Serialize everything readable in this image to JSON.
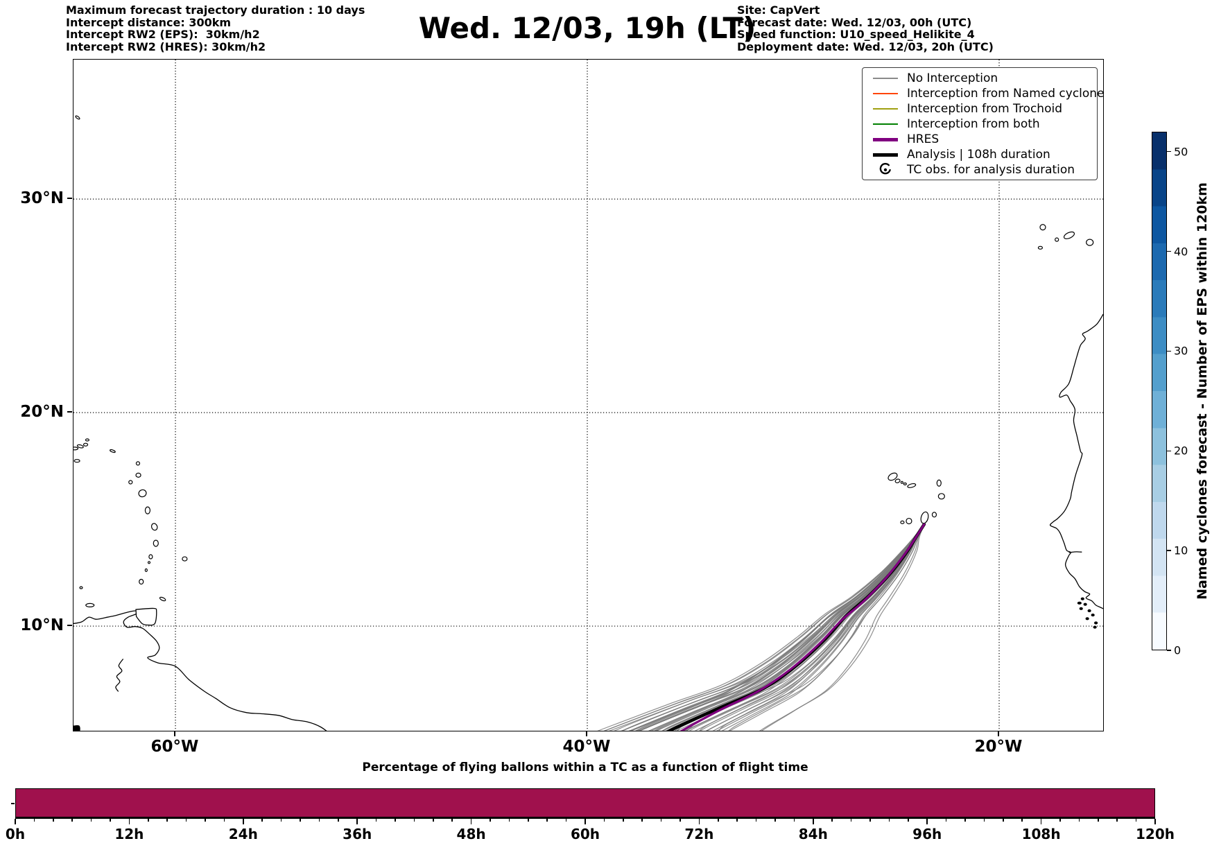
{
  "header": {
    "info_left": [
      "Maximum forecast trajectory duration : 10 days",
      "Intercept distance: 300km",
      "Intercept RW2 (EPS):  30km/h2",
      "Intercept RW2 (HRES): 30km/h2"
    ],
    "title": "Wed. 12/03, 19h (LT)",
    "info_right": [
      "Site: CapVert",
      "Forecast date: Wed. 12/03, 00h (UTC)",
      "Speed function: U10_speed_Helikite_4",
      "Deployment date: Wed. 12/03, 20h (UTC)"
    ]
  },
  "legend": {
    "entries": [
      {
        "label": "No Interception",
        "color": "#8a8a8a",
        "kind": "line"
      },
      {
        "label": "Interception from Named cyclone",
        "color": "#ff4500",
        "kind": "line"
      },
      {
        "label": "Interception from Trochoid",
        "color": "#a0a010",
        "kind": "line"
      },
      {
        "label": "Interception from both",
        "color": "#008000",
        "kind": "line"
      },
      {
        "label": "HRES",
        "color": "#800080",
        "kind": "thick"
      },
      {
        "label": "Analysis | 108h duration",
        "color": "#000000",
        "kind": "thick"
      },
      {
        "label": "TC obs. for analysis duration",
        "color": "#000000",
        "kind": "marker",
        "icon": "cyclone"
      }
    ]
  },
  "colorbar": {
    "label": "Named cyclones forecast - Number of EPS within 120km",
    "ticks": [
      0,
      10,
      20,
      30,
      40,
      50
    ],
    "vmin": 0,
    "vmax": 52,
    "colormap": "Blues",
    "colors": [
      "#f7fbff",
      "#e3eef9",
      "#d3e4f3",
      "#bfd8ed",
      "#a8cee4",
      "#8dc1dd",
      "#6fb0d7",
      "#549fcd",
      "#3d8dc4",
      "#2b7bba",
      "#1c69af",
      "#0d57a1",
      "#084488",
      "#08306b"
    ]
  },
  "chart_data": [
    {
      "type": "map-trajectories",
      "title": "Wed. 12/03, 19h (LT)",
      "projection": "PlateCarree",
      "extent": {
        "lon": [
          -64.95,
          -14.95
        ],
        "lat": [
          5.1,
          36.53
        ]
      },
      "grid": "dotted",
      "lon_ticks": [
        {
          "value": -60,
          "label": "60°W"
        },
        {
          "value": -40,
          "label": "40°W"
        },
        {
          "value": -20,
          "label": "20°W"
        }
      ],
      "lat_ticks": [
        {
          "value": 30,
          "label": "30°N"
        },
        {
          "value": 20,
          "label": "20°N"
        },
        {
          "value": 10,
          "label": "10°N"
        }
      ],
      "site": {
        "name": "CapVert",
        "lon": -23.64,
        "lat": 14.77
      },
      "analysis_path": [
        [
          -23.64,
          14.77
        ],
        [
          -24.05,
          14.15
        ],
        [
          -24.45,
          13.52
        ],
        [
          -25.3,
          12.45
        ],
        [
          -26.4,
          11.35
        ],
        [
          -27.42,
          10.5
        ],
        [
          -28.42,
          9.42
        ],
        [
          -29.78,
          8.2
        ],
        [
          -31.4,
          7.1
        ],
        [
          -33.5,
          6.2
        ],
        [
          -35.9,
          5.15
        ],
        [
          -36.6,
          4.7
        ]
      ],
      "analysis_style": {
        "color": "#000000",
        "width": 4.5
      },
      "hres_path": [
        [
          -23.64,
          14.77
        ],
        [
          -24.15,
          14.0
        ],
        [
          -24.6,
          13.35
        ],
        [
          -25.5,
          12.25
        ],
        [
          -26.6,
          11.15
        ],
        [
          -27.65,
          10.28
        ],
        [
          -28.7,
          9.2
        ],
        [
          -30.1,
          8.0
        ],
        [
          -31.7,
          6.95
        ],
        [
          -33.6,
          6.05
        ],
        [
          -35.4,
          5.1
        ],
        [
          -36.1,
          4.65
        ]
      ],
      "hres_style": {
        "color": "#800080",
        "width": 3.2
      },
      "eps_members": {
        "count": 50,
        "seed": 11,
        "color": "#7a7a7a",
        "width": 1.2,
        "opacity": 0.85,
        "shift_min": -3.1,
        "shift_max": 5.2,
        "skew": 1.8,
        "lat_jitter": 0.6,
        "wiggle": 0.5
      },
      "coastlines": [
        {
          "name": "south-america-coast",
          "pts": [
            [
              -64.95,
              10.12
            ],
            [
              -64.55,
              10.2
            ],
            [
              -64.2,
              10.42
            ],
            [
              -63.85,
              10.32
            ],
            [
              -63.3,
              10.42
            ],
            [
              -62.9,
              10.5
            ],
            [
              -62.6,
              10.58
            ],
            [
              -62.2,
              10.68
            ],
            [
              -61.85,
              10.72
            ],
            [
              -61.65,
              10.68
            ],
            [
              -61.95,
              10.55
            ],
            [
              -62.3,
              10.42
            ],
            [
              -62.52,
              10.2
            ],
            [
              -62.35,
              9.95
            ],
            [
              -61.95,
              9.98
            ],
            [
              -61.6,
              9.9
            ],
            [
              -61.25,
              9.62
            ],
            [
              -60.92,
              9.3
            ],
            [
              -60.78,
              8.98
            ],
            [
              -60.98,
              8.65
            ],
            [
              -61.35,
              8.52
            ],
            [
              -60.85,
              8.28
            ],
            [
              -60.0,
              8.12
            ],
            [
              -59.35,
              7.5
            ],
            [
              -58.6,
              6.95
            ],
            [
              -58.05,
              6.62
            ],
            [
              -57.35,
              6.18
            ],
            [
              -56.55,
              5.95
            ],
            [
              -55.85,
              5.9
            ],
            [
              -55.0,
              5.82
            ],
            [
              -54.3,
              5.62
            ],
            [
              -53.6,
              5.52
            ],
            [
              -52.95,
              5.28
            ],
            [
              -52.35,
              4.85
            ]
          ]
        },
        {
          "name": "west-africa-coast",
          "pts": [
            [
              -14.95,
              24.6
            ],
            [
              -15.25,
              24.15
            ],
            [
              -15.7,
              23.82
            ],
            [
              -15.95,
              23.68
            ],
            [
              -15.82,
              23.45
            ],
            [
              -16.05,
              23.15
            ],
            [
              -16.22,
              22.65
            ],
            [
              -16.38,
              22.1
            ],
            [
              -16.62,
              21.35
            ],
            [
              -17.0,
              20.95
            ],
            [
              -17.05,
              20.72
            ],
            [
              -16.72,
              20.82
            ],
            [
              -16.55,
              20.55
            ],
            [
              -16.32,
              20.15
            ],
            [
              -16.38,
              19.6
            ],
            [
              -16.22,
              18.9
            ],
            [
              -16.05,
              18.2
            ],
            [
              -15.98,
              18.0
            ],
            [
              -16.28,
              17.1
            ],
            [
              -16.48,
              16.3
            ],
            [
              -16.55,
              15.95
            ],
            [
              -16.82,
              15.4
            ],
            [
              -17.15,
              15.05
            ],
            [
              -17.38,
              14.88
            ],
            [
              -17.52,
              14.72
            ],
            [
              -17.22,
              14.58
            ],
            [
              -17.05,
              14.38
            ],
            [
              -16.85,
              13.9
            ],
            [
              -16.72,
              13.55
            ],
            [
              -16.52,
              13.45
            ],
            [
              -16.62,
              13.3
            ],
            [
              -16.78,
              12.88
            ],
            [
              -16.6,
              12.5
            ],
            [
              -16.32,
              12.22
            ],
            [
              -16.1,
              11.85
            ],
            [
              -15.85,
              11.62
            ],
            [
              -15.6,
              11.5
            ],
            [
              -15.78,
              11.32
            ],
            [
              -15.5,
              11.18
            ],
            [
              -15.3,
              10.98
            ],
            [
              -15.08,
              10.88
            ],
            [
              -14.95,
              10.82
            ]
          ]
        },
        {
          "name": "orinoco-river",
          "pts": [
            [
              -62.55,
              8.45
            ],
            [
              -62.75,
              8.15
            ],
            [
              -62.6,
              7.9
            ],
            [
              -62.85,
              7.65
            ],
            [
              -62.7,
              7.4
            ],
            [
              -62.9,
              7.15
            ],
            [
              -62.78,
              6.95
            ]
          ]
        },
        {
          "name": "gambia-river",
          "pts": [
            [
              -16.6,
              13.45
            ],
            [
              -16.25,
              13.48
            ],
            [
              -16.0,
              13.47
            ]
          ]
        }
      ],
      "island_polys": [
        {
          "name": "trinidad",
          "pts": [
            [
              -61.92,
              10.78
            ],
            [
              -61.05,
              10.83
            ],
            [
              -60.92,
              10.68
            ],
            [
              -61.0,
              10.12
            ],
            [
              -61.35,
              10.05
            ],
            [
              -61.62,
              10.12
            ],
            [
              -61.9,
              10.45
            ]
          ],
          "solid": false
        },
        {
          "name": "corner-islet",
          "pts": [
            [
              -64.95,
              5.05
            ],
            [
              -64.68,
              5.05
            ],
            [
              -64.68,
              5.32
            ],
            [
              -64.95,
              5.32
            ]
          ],
          "solid": true
        }
      ],
      "islands": [
        {
          "name": "st-thomas",
          "lon": -64.9,
          "lat": 18.32,
          "w": 10,
          "h": 4,
          "rot": 0
        },
        {
          "name": "tortola",
          "lon": -64.62,
          "lat": 18.42,
          "w": 9,
          "h": 4,
          "rot": 15
        },
        {
          "name": "virgin-gorda",
          "lon": -64.36,
          "lat": 18.5,
          "w": 6,
          "h": 4,
          "rot": 0
        },
        {
          "name": "anegada",
          "lon": -64.28,
          "lat": 18.72,
          "w": 5,
          "h": 3,
          "rot": 0
        },
        {
          "name": "st-croix",
          "lon": -64.78,
          "lat": 17.74,
          "w": 8,
          "h": 4,
          "rot": 0
        },
        {
          "name": "anguilla",
          "lon": -63.05,
          "lat": 18.2,
          "w": 8,
          "h": 3,
          "rot": 20
        },
        {
          "name": "barbuda",
          "lon": -61.82,
          "lat": 17.62,
          "w": 5,
          "h": 5,
          "rot": 0
        },
        {
          "name": "antigua",
          "lon": -61.8,
          "lat": 17.07,
          "w": 7,
          "h": 6,
          "rot": 0
        },
        {
          "name": "montserrat",
          "lon": -62.18,
          "lat": 16.74,
          "w": 5,
          "h": 5,
          "rot": 0
        },
        {
          "name": "guadeloupe",
          "lon": -61.6,
          "lat": 16.22,
          "w": 11,
          "h": 10,
          "rot": -20
        },
        {
          "name": "dominica",
          "lon": -61.35,
          "lat": 15.42,
          "w": 7,
          "h": 10,
          "rot": 0
        },
        {
          "name": "martinique",
          "lon": -61.02,
          "lat": 14.65,
          "w": 8,
          "h": 10,
          "rot": -20
        },
        {
          "name": "st-lucia",
          "lon": -60.95,
          "lat": 13.88,
          "w": 7,
          "h": 9,
          "rot": 0
        },
        {
          "name": "st-vincent",
          "lon": -61.2,
          "lat": 13.25,
          "w": 5,
          "h": 6,
          "rot": 0
        },
        {
          "name": "bequia",
          "lon": -61.28,
          "lat": 12.98,
          "w": 3,
          "h": 3,
          "rot": 0
        },
        {
          "name": "grenadines",
          "lon": -61.42,
          "lat": 12.62,
          "w": 3,
          "h": 4,
          "rot": 0
        },
        {
          "name": "grenada",
          "lon": -61.66,
          "lat": 12.08,
          "w": 6,
          "h": 7,
          "rot": 0
        },
        {
          "name": "barbados",
          "lon": -59.55,
          "lat": 13.15,
          "w": 7,
          "h": 6,
          "rot": 0
        },
        {
          "name": "tobago",
          "lon": -60.62,
          "lat": 11.27,
          "w": 9,
          "h": 4,
          "rot": 25
        },
        {
          "name": "margarita",
          "lon": -64.15,
          "lat": 10.98,
          "w": 12,
          "h": 5,
          "rot": 0
        },
        {
          "name": "blanquilla",
          "lon": -64.58,
          "lat": 11.8,
          "w": 4,
          "h": 3,
          "rot": 0
        },
        {
          "name": "bermuda",
          "lon": -64.75,
          "lat": 33.82,
          "w": 7,
          "h": 3,
          "rot": 35
        },
        {
          "name": "santo-antao",
          "lon": -25.17,
          "lat": 17.0,
          "w": 14,
          "h": 9,
          "rot": -30
        },
        {
          "name": "sao-vicente",
          "lon": -24.93,
          "lat": 16.8,
          "w": 7,
          "h": 5,
          "rot": -20
        },
        {
          "name": "santa-luzia",
          "lon": -24.72,
          "lat": 16.73,
          "w": 3,
          "h": 3,
          "rot": 0
        },
        {
          "name": "sao-nicolau-w",
          "lon": -24.57,
          "lat": 16.66,
          "w": 4,
          "h": 3,
          "rot": 0
        },
        {
          "name": "sao-nicolau",
          "lon": -24.25,
          "lat": 16.58,
          "w": 12,
          "h": 5,
          "rot": -15
        },
        {
          "name": "sal",
          "lon": -22.92,
          "lat": 16.7,
          "w": 6,
          "h": 9,
          "rot": 0
        },
        {
          "name": "boa-vista",
          "lon": -22.8,
          "lat": 16.08,
          "w": 9,
          "h": 8,
          "rot": 0
        },
        {
          "name": "maio",
          "lon": -23.15,
          "lat": 15.22,
          "w": 6,
          "h": 7,
          "rot": 0
        },
        {
          "name": "santiago",
          "lon": -23.62,
          "lat": 15.08,
          "w": 10,
          "h": 17,
          "rot": 15
        },
        {
          "name": "fogo",
          "lon": -24.38,
          "lat": 14.92,
          "w": 8,
          "h": 8,
          "rot": 0
        },
        {
          "name": "brava",
          "lon": -24.7,
          "lat": 14.86,
          "w": 5,
          "h": 4,
          "rot": 0
        },
        {
          "name": "el-hierro",
          "lon": -18.0,
          "lat": 27.72,
          "w": 6,
          "h": 4,
          "rot": 0
        },
        {
          "name": "la-palma",
          "lon": -17.88,
          "lat": 28.68,
          "w": 8,
          "h": 8,
          "rot": 0
        },
        {
          "name": "la-gomera",
          "lon": -17.2,
          "lat": 28.1,
          "w": 5,
          "h": 5,
          "rot": 0
        },
        {
          "name": "tenerife",
          "lon": -16.6,
          "lat": 28.3,
          "w": 16,
          "h": 8,
          "rot": -25
        },
        {
          "name": "gran-canaria",
          "lon": -15.6,
          "lat": 27.97,
          "w": 10,
          "h": 9,
          "rot": 0
        },
        {
          "name": "bijagos-1",
          "lon": -15.95,
          "lat": 11.28,
          "w": 4,
          "h": 3,
          "rot": 0,
          "solid": true
        },
        {
          "name": "bijagos-2",
          "lon": -16.1,
          "lat": 11.08,
          "w": 5,
          "h": 3,
          "rot": 0,
          "solid": true
        },
        {
          "name": "bijagos-3",
          "lon": -15.82,
          "lat": 11.02,
          "w": 4,
          "h": 3,
          "rot": 0,
          "solid": true
        },
        {
          "name": "bijagos-4",
          "lon": -16.02,
          "lat": 10.82,
          "w": 4,
          "h": 3,
          "rot": 0,
          "solid": true
        },
        {
          "name": "bijagos-5",
          "lon": -15.62,
          "lat": 10.72,
          "w": 4,
          "h": 3,
          "rot": 0,
          "solid": true
        },
        {
          "name": "bijagos-6",
          "lon": -15.45,
          "lat": 10.52,
          "w": 4,
          "h": 3,
          "rot": 0,
          "solid": true
        },
        {
          "name": "bijagos-7",
          "lon": -15.72,
          "lat": 10.35,
          "w": 4,
          "h": 3,
          "rot": 0,
          "solid": true
        },
        {
          "name": "bijagos-8",
          "lon": -15.3,
          "lat": 10.15,
          "w": 4,
          "h": 3,
          "rot": 0,
          "solid": true
        },
        {
          "name": "bijagos-9",
          "lon": -15.35,
          "lat": 9.95,
          "w": 4,
          "h": 3,
          "rot": 0,
          "solid": true
        }
      ]
    },
    {
      "type": "bar",
      "title": "Percentage of flying ballons within a TC as a function of flight time",
      "x_tick_labels": [
        "0h",
        "12h",
        "24h",
        "36h",
        "48h",
        "60h",
        "72h",
        "84h",
        "96h",
        "108h",
        "120h"
      ],
      "x_range_hours": [
        0,
        120
      ],
      "x_major_step_hours": 12,
      "x_minor_step_hours": 2,
      "value_percent_constant": 100,
      "bar_color": "#a0114d"
    }
  ]
}
